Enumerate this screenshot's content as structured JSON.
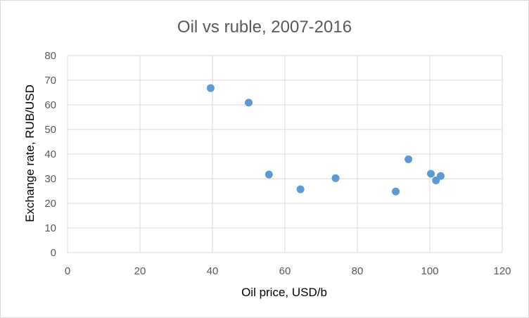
{
  "chart_data": {
    "type": "scatter",
    "title": "Oil vs ruble, 2007-2016",
    "xlabel": "Oil price, USD/b",
    "ylabel": "Exchange rate, RUB/USD",
    "xlim": [
      0,
      120
    ],
    "ylim": [
      0,
      80
    ],
    "xticks": [
      "0",
      "20",
      "40",
      "60",
      "80",
      "100",
      "120"
    ],
    "yticks": [
      "0",
      "10",
      "20",
      "30",
      "40",
      "50",
      "60",
      "70",
      "80"
    ],
    "grid": true,
    "legend": "none",
    "series": [
      {
        "marker_color": "#5b9bd5",
        "points": [
          {
            "x": 39.5,
            "y": 66.8
          },
          {
            "x": 50.0,
            "y": 60.9
          },
          {
            "x": 55.6,
            "y": 31.7
          },
          {
            "x": 64.3,
            "y": 25.7
          },
          {
            "x": 74.0,
            "y": 30.2
          },
          {
            "x": 90.6,
            "y": 24.8
          },
          {
            "x": 94.1,
            "y": 37.9
          },
          {
            "x": 100.3,
            "y": 32.0
          },
          {
            "x": 101.7,
            "y": 29.3
          },
          {
            "x": 103.0,
            "y": 31.1
          }
        ]
      }
    ]
  }
}
